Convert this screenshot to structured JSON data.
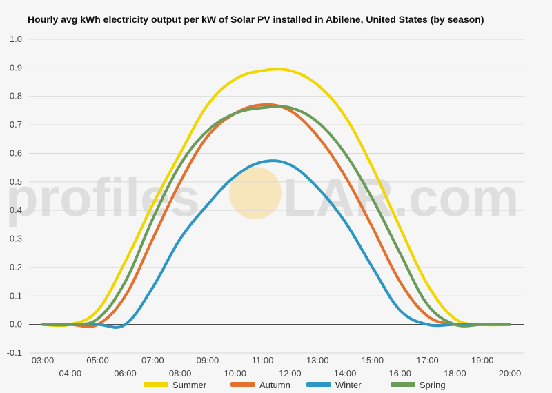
{
  "chart_data": {
    "type": "line",
    "title": "Hourly avg kWh electricity output per kW of Solar PV installed in Abilene, United States (by season)",
    "xlabel": "",
    "ylabel": "",
    "ylim": [
      -0.1,
      1.0
    ],
    "yticks": [
      "-0.1",
      "0.0",
      "0.1",
      "0.2",
      "0.3",
      "0.4",
      "0.5",
      "0.6",
      "0.7",
      "0.8",
      "0.9",
      "1.0"
    ],
    "ytick_values": [
      -0.1,
      0.0,
      0.1,
      0.2,
      0.3,
      0.4,
      0.5,
      0.6,
      0.7,
      0.8,
      0.9,
      1.0
    ],
    "x_ticks_top_row": [
      "03:00",
      "05:00",
      "07:00",
      "09:00",
      "11:00",
      "13:00",
      "15:00",
      "17:00",
      "19:00"
    ],
    "x_ticks_bottom_row": [
      "04:00",
      "06:00",
      "08:00",
      "10:00",
      "12:00",
      "14:00",
      "16:00",
      "18:00",
      "20:00"
    ],
    "x_hours": [
      3,
      4,
      5,
      6,
      7,
      8,
      9,
      10,
      11,
      12,
      13,
      14,
      15,
      16,
      17,
      18,
      19,
      20
    ],
    "grid": true,
    "legend_position": "bottom",
    "series": [
      {
        "name": "Summer",
        "color": "#f2d600",
        "values": [
          0.0,
          0.0,
          0.05,
          0.22,
          0.42,
          0.6,
          0.77,
          0.86,
          0.89,
          0.89,
          0.84,
          0.73,
          0.55,
          0.34,
          0.14,
          0.02,
          0.0,
          0.0
        ]
      },
      {
        "name": "Autumn",
        "color": "#e3702d",
        "values": [
          0.0,
          0.0,
          0.0,
          0.1,
          0.3,
          0.5,
          0.66,
          0.74,
          0.77,
          0.75,
          0.66,
          0.52,
          0.34,
          0.15,
          0.03,
          0.0,
          0.0,
          0.0
        ]
      },
      {
        "name": "Winter",
        "color": "#2c96c4",
        "values": [
          0.0,
          0.0,
          0.0,
          0.0,
          0.13,
          0.3,
          0.42,
          0.52,
          0.57,
          0.56,
          0.48,
          0.36,
          0.2,
          0.05,
          0.0,
          0.0,
          0.0,
          0.0
        ]
      },
      {
        "name": "Spring",
        "color": "#6b9b58",
        "values": [
          0.0,
          0.0,
          0.02,
          0.15,
          0.37,
          0.56,
          0.68,
          0.74,
          0.76,
          0.76,
          0.71,
          0.6,
          0.44,
          0.25,
          0.07,
          0.0,
          0.0,
          0.0
        ]
      }
    ]
  },
  "watermark": {
    "left": "profiles",
    "right": "LAR.com",
    "sun_color": "#f7d98b"
  }
}
